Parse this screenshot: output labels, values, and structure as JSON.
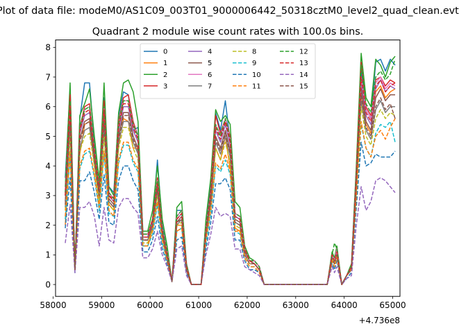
{
  "figure": {
    "suptitle": "Plot of data file: modeM0/AS1C09_003T01_9000006442_50318cztM0_level2_quad_clean.evt"
  },
  "chart_data": {
    "type": "line",
    "title": "Quadrant 2 module wise count rates with 100.0s bins.",
    "xlabel": "",
    "ylabel": "",
    "x_offset_label": "+4.736e8",
    "xlim": [
      58050,
      65150
    ],
    "ylim": [
      -0.4,
      8.25
    ],
    "xticks": [
      58000,
      59000,
      60000,
      61000,
      62000,
      63000,
      64000,
      65000
    ],
    "yticks": [
      0,
      1,
      2,
      3,
      4,
      5,
      6,
      7,
      8
    ],
    "grid": false,
    "legend": {
      "placement": "upper-center",
      "columns": 4
    },
    "x": [
      58250,
      58350,
      58450,
      58550,
      58650,
      58750,
      58850,
      58950,
      59050,
      59150,
      59250,
      59350,
      59450,
      59550,
      59650,
      59750,
      59850,
      59950,
      60050,
      60150,
      60250,
      60350,
      60450,
      60550,
      60650,
      60750,
      60850,
      60950,
      61050,
      61150,
      61250,
      61350,
      61450,
      61550,
      61650,
      61750,
      61850,
      61950,
      62050,
      62150,
      62250,
      62350,
      63650,
      63750,
      63800,
      63850,
      63950,
      64050,
      64150,
      64250,
      64350,
      64450,
      64550,
      64650,
      64750,
      64850,
      64950,
      65050
    ],
    "series": [
      {
        "name": "0",
        "color": "#1f77b4",
        "dash": "solid",
        "values": [
          3.6,
          6.6,
          0.5,
          5.6,
          6.8,
          6.8,
          4.8,
          3.4,
          6.3,
          3.3,
          3.1,
          5.7,
          6.5,
          6.4,
          5.2,
          5.3,
          1.6,
          1.6,
          2.2,
          4.2,
          2.0,
          1.1,
          0.1,
          2.5,
          2.5,
          0.6,
          0,
          0,
          0,
          2.0,
          3.4,
          5.8,
          5.2,
          6.2,
          4.8,
          2.3,
          2.2,
          1.2,
          0.8,
          0.8,
          0.6,
          0,
          0,
          1.0,
          0.8,
          1.2,
          0,
          0.3,
          0.6,
          3.9,
          7.2,
          5.9,
          5.6,
          7.5,
          7.6,
          7.2,
          7.6,
          7.4
        ]
      },
      {
        "name": "1",
        "color": "#ff7f0e",
        "dash": "solid",
        "values": [
          2.0,
          4.5,
          0.5,
          4.4,
          5.4,
          5.5,
          4.0,
          2.8,
          5.2,
          2.7,
          2.5,
          4.7,
          5.6,
          5.5,
          4.6,
          4.6,
          1.3,
          1.3,
          1.9,
          3.2,
          1.6,
          0.9,
          0.1,
          2.0,
          2.0,
          0.5,
          0,
          0,
          0,
          1.6,
          2.8,
          4.6,
          4.2,
          5.0,
          3.9,
          1.9,
          1.8,
          1.0,
          0.7,
          0.7,
          0.5,
          0,
          0,
          0.8,
          0.7,
          1.0,
          0,
          0.3,
          0.5,
          3.2,
          6.3,
          5.4,
          5.1,
          6.5,
          6.7,
          6.3,
          6.5,
          6.6
        ]
      },
      {
        "name": "2",
        "color": "#2ca02c",
        "dash": "solid",
        "values": [
          3.3,
          6.8,
          0.5,
          5.7,
          6.1,
          6.6,
          5.0,
          3.5,
          6.8,
          3.3,
          3.0,
          5.8,
          6.8,
          6.9,
          6.5,
          5.5,
          1.8,
          1.8,
          2.5,
          4.0,
          2.2,
          1.3,
          0.1,
          2.6,
          2.8,
          0.7,
          0,
          0,
          0,
          2.2,
          3.6,
          5.9,
          5.5,
          5.7,
          5.4,
          2.8,
          2.6,
          1.3,
          0.9,
          0.8,
          0.6,
          0,
          0,
          1.1,
          0.9,
          1.3,
          0,
          0.3,
          0.7,
          4.0,
          7.8,
          6.3,
          6.0,
          7.6,
          7.4,
          7.0,
          7.5,
          7.7
        ]
      },
      {
        "name": "3",
        "color": "#d62728",
        "dash": "solid",
        "values": [
          3.0,
          6.4,
          0.5,
          5.3,
          6.0,
          6.1,
          4.6,
          3.2,
          6.2,
          3.0,
          2.9,
          5.5,
          6.3,
          6.4,
          5.5,
          5.0,
          1.7,
          1.7,
          2.2,
          3.6,
          1.9,
          1.1,
          0.1,
          2.3,
          2.5,
          0.6,
          0,
          0,
          0,
          1.9,
          3.2,
          5.7,
          5.1,
          5.6,
          5.0,
          2.4,
          2.3,
          1.2,
          0.8,
          0.8,
          0.6,
          0,
          0,
          1.0,
          0.8,
          1.2,
          0,
          0.3,
          0.6,
          3.8,
          7.5,
          6.0,
          5.7,
          6.9,
          7.0,
          6.7,
          6.9,
          6.8
        ]
      },
      {
        "name": "4",
        "color": "#9467bd",
        "dash": "solid",
        "values": [
          3.1,
          5.8,
          0.5,
          5.1,
          5.7,
          5.8,
          4.5,
          3.2,
          5.8,
          3.0,
          2.8,
          5.2,
          6.0,
          6.0,
          5.2,
          4.8,
          1.6,
          1.6,
          2.1,
          3.4,
          1.8,
          1.0,
          0.1,
          2.2,
          2.4,
          0.6,
          0,
          0,
          0,
          1.8,
          3.0,
          5.2,
          4.8,
          5.4,
          4.7,
          2.3,
          2.2,
          1.1,
          0.8,
          0.7,
          0.5,
          0,
          0,
          0.9,
          0.8,
          1.1,
          0,
          0.3,
          0.6,
          3.6,
          6.8,
          5.7,
          5.4,
          6.6,
          6.9,
          6.5,
          6.7,
          6.6
        ]
      },
      {
        "name": "5",
        "color": "#8c564b",
        "dash": "solid",
        "values": [
          2.8,
          5.5,
          0.5,
          4.9,
          5.5,
          5.6,
          4.3,
          3.0,
          5.5,
          2.9,
          2.7,
          5.0,
          5.8,
          5.8,
          5.0,
          4.6,
          1.5,
          1.5,
          2.0,
          3.2,
          1.7,
          1.0,
          0.1,
          2.1,
          2.3,
          0.6,
          0,
          0,
          0,
          1.7,
          2.9,
          5.0,
          4.6,
          5.2,
          4.5,
          2.2,
          2.1,
          1.1,
          0.8,
          0.7,
          0.5,
          0,
          0,
          0.9,
          0.7,
          1.1,
          0,
          0.3,
          0.6,
          3.5,
          6.6,
          5.5,
          5.2,
          6.3,
          6.6,
          6.2,
          6.4,
          6.4
        ]
      },
      {
        "name": "6",
        "color": "#e377c2",
        "dash": "solid",
        "values": [
          3.2,
          6.0,
          0.5,
          5.2,
          5.9,
          6.0,
          4.6,
          3.3,
          6.0,
          3.1,
          2.9,
          5.4,
          6.2,
          6.2,
          5.4,
          5.0,
          1.7,
          1.7,
          2.2,
          3.5,
          1.9,
          1.1,
          0.1,
          2.3,
          2.5,
          0.6,
          0,
          0,
          0,
          1.9,
          3.1,
          5.4,
          5.0,
          5.6,
          4.9,
          2.4,
          2.3,
          1.2,
          0.8,
          0.8,
          0.6,
          0,
          0,
          1.0,
          0.8,
          1.2,
          0,
          0.3,
          0.6,
          3.7,
          7.0,
          5.9,
          5.6,
          6.8,
          7.0,
          6.6,
          6.8,
          6.7
        ]
      },
      {
        "name": "7",
        "color": "#7f7f7f",
        "dash": "solid",
        "values": [
          2.6,
          5.2,
          0.5,
          4.6,
          5.2,
          5.3,
          4.1,
          2.9,
          5.2,
          2.8,
          2.6,
          4.8,
          5.5,
          5.5,
          4.8,
          4.4,
          1.5,
          1.5,
          1.9,
          3.1,
          1.6,
          0.9,
          0.1,
          2.0,
          2.2,
          0.5,
          0,
          0,
          0,
          1.6,
          2.8,
          4.8,
          4.4,
          5.0,
          4.3,
          2.1,
          2.0,
          1.0,
          0.7,
          0.7,
          0.5,
          0,
          0,
          0.9,
          0.7,
          1.0,
          0,
          0.3,
          0.5,
          3.3,
          6.2,
          5.2,
          4.9,
          5.9,
          6.2,
          5.8,
          6.0,
          6.0
        ]
      },
      {
        "name": "8",
        "color": "#bcbd22",
        "dash": "dashed",
        "values": [
          2.5,
          5.0,
          0.5,
          4.5,
          5.0,
          5.1,
          4.0,
          2.8,
          5.0,
          2.7,
          2.5,
          4.6,
          5.3,
          5.3,
          4.6,
          4.2,
          1.4,
          1.4,
          1.9,
          3.0,
          1.6,
          0.9,
          0.1,
          2.0,
          2.1,
          0.5,
          0,
          0,
          0,
          1.6,
          2.7,
          4.6,
          4.2,
          4.8,
          4.1,
          2.0,
          1.9,
          1.0,
          0.7,
          0.7,
          0.5,
          0,
          0,
          0.9,
          0.7,
          1.0,
          0,
          0.3,
          0.5,
          3.2,
          6.0,
          5.0,
          4.7,
          5.6,
          5.9,
          5.6,
          5.8,
          5.7
        ]
      },
      {
        "name": "9",
        "color": "#17becf",
        "dash": "dashed",
        "values": [
          2.2,
          4.3,
          0.5,
          3.9,
          4.4,
          4.5,
          3.6,
          2.5,
          4.4,
          2.4,
          2.3,
          4.1,
          4.7,
          4.7,
          4.1,
          3.8,
          1.3,
          1.3,
          1.7,
          2.7,
          1.4,
          0.8,
          0.1,
          1.8,
          1.9,
          0.5,
          0,
          0,
          0,
          1.4,
          2.4,
          4.0,
          3.8,
          4.2,
          3.7,
          1.8,
          1.7,
          0.9,
          0.6,
          0.6,
          0.4,
          0,
          0,
          0.8,
          0.6,
          0.9,
          0,
          0.3,
          0.5,
          2.9,
          5.4,
          4.6,
          4.3,
          5.1,
          5.4,
          5.3,
          5.5,
          4.8
        ]
      },
      {
        "name": "10",
        "color": "#1f77b4",
        "dash": "dashed",
        "values": [
          1.9,
          3.6,
          0.4,
          3.5,
          3.5,
          3.8,
          3.1,
          2.2,
          3.7,
          2.1,
          2.0,
          3.5,
          4.0,
          4.0,
          3.5,
          3.2,
          1.1,
          1.1,
          1.5,
          2.3,
          1.2,
          0.7,
          0.1,
          1.5,
          1.6,
          0.4,
          0,
          0,
          0,
          1.2,
          2.1,
          3.4,
          3.4,
          3.6,
          3.2,
          1.5,
          1.5,
          0.8,
          0.5,
          0.5,
          0.4,
          0,
          0,
          0.7,
          0.5,
          0.8,
          0,
          0.2,
          0.4,
          2.6,
          4.8,
          4.0,
          4.1,
          4.4,
          4.3,
          4.3,
          4.3,
          4.5
        ]
      },
      {
        "name": "11",
        "color": "#ff7f0e",
        "dash": "dashed",
        "values": [
          2.3,
          4.4,
          0.5,
          4.0,
          4.5,
          4.6,
          3.7,
          2.6,
          4.5,
          2.5,
          2.3,
          4.2,
          4.8,
          4.8,
          4.2,
          3.9,
          1.3,
          1.3,
          1.8,
          2.8,
          1.5,
          0.8,
          0.1,
          1.8,
          1.9,
          0.5,
          0,
          0,
          0,
          1.5,
          2.5,
          4.1,
          3.9,
          4.4,
          3.8,
          1.8,
          1.8,
          0.9,
          0.6,
          0.6,
          0.4,
          0,
          0,
          0.8,
          0.6,
          0.9,
          0,
          0.3,
          0.5,
          3.0,
          5.5,
          4.6,
          4.3,
          5.0,
          5.2,
          4.9,
          5.3,
          5.6
        ]
      },
      {
        "name": "12",
        "color": "#2ca02c",
        "dash": "dashed",
        "values": [
          3.1,
          6.2,
          0.5,
          5.3,
          5.9,
          6.0,
          4.6,
          3.3,
          6.0,
          3.1,
          2.9,
          5.4,
          6.2,
          6.2,
          5.4,
          5.0,
          1.7,
          1.7,
          2.2,
          3.5,
          1.9,
          1.1,
          0.1,
          2.3,
          2.5,
          0.6,
          0,
          0,
          0,
          1.9,
          3.1,
          5.4,
          5.0,
          5.6,
          4.9,
          2.4,
          2.3,
          1.2,
          0.8,
          0.8,
          0.6,
          0,
          0,
          1.0,
          1.4,
          1.2,
          0,
          0.3,
          0.6,
          3.7,
          7.4,
          6.1,
          5.8,
          7.0,
          7.2,
          6.9,
          7.1,
          7.6
        ]
      },
      {
        "name": "13",
        "color": "#d62728",
        "dash": "dashed",
        "values": [
          3.0,
          6.0,
          0.5,
          5.2,
          5.8,
          5.9,
          4.5,
          3.2,
          5.9,
          3.0,
          2.8,
          5.3,
          6.1,
          6.1,
          5.3,
          4.9,
          1.6,
          1.6,
          2.2,
          3.4,
          1.8,
          1.0,
          0.1,
          2.2,
          2.4,
          0.6,
          0,
          0,
          0,
          1.8,
          3.0,
          5.3,
          4.9,
          5.5,
          4.8,
          2.3,
          2.2,
          1.2,
          0.8,
          0.7,
          0.5,
          0,
          0,
          1.0,
          0.8,
          1.1,
          0,
          0.3,
          0.6,
          3.6,
          7.0,
          5.8,
          5.5,
          6.7,
          6.9,
          6.5,
          6.7,
          6.8
        ]
      },
      {
        "name": "14",
        "color": "#9467bd",
        "dash": "dashed",
        "values": [
          1.4,
          2.7,
          0.4,
          2.6,
          2.6,
          2.8,
          2.3,
          1.3,
          2.6,
          1.5,
          1.4,
          2.6,
          2.9,
          2.9,
          2.6,
          2.4,
          0.9,
          0.9,
          1.2,
          1.8,
          1.0,
          0.6,
          0.1,
          1.2,
          1.3,
          0.3,
          0,
          0,
          0,
          1.0,
          1.7,
          2.6,
          2.3,
          2.4,
          2.3,
          1.2,
          1.2,
          0.6,
          0.5,
          0.4,
          0.3,
          0,
          0,
          0.6,
          0.4,
          0.6,
          0,
          0.2,
          0.3,
          2.0,
          3.3,
          2.5,
          2.8,
          3.5,
          3.6,
          3.5,
          3.3,
          3.1
        ]
      },
      {
        "name": "15",
        "color": "#8c564b",
        "dash": "dashed",
        "values": [
          2.7,
          5.4,
          0.5,
          4.8,
          5.4,
          5.5,
          4.2,
          3.0,
          5.4,
          2.8,
          2.6,
          4.9,
          5.7,
          5.7,
          4.9,
          4.5,
          1.5,
          1.5,
          2.0,
          3.2,
          1.7,
          0.9,
          0.1,
          2.1,
          2.2,
          0.5,
          0,
          0,
          0,
          1.7,
          2.8,
          4.9,
          4.5,
          5.1,
          4.4,
          2.1,
          2.0,
          1.0,
          0.7,
          0.7,
          0.5,
          0,
          0,
          0.9,
          0.7,
          1.0,
          0,
          0.3,
          0.5,
          3.4,
          6.4,
          5.3,
          5.0,
          6.0,
          6.3,
          5.9,
          6.1,
          5.6
        ]
      }
    ]
  }
}
